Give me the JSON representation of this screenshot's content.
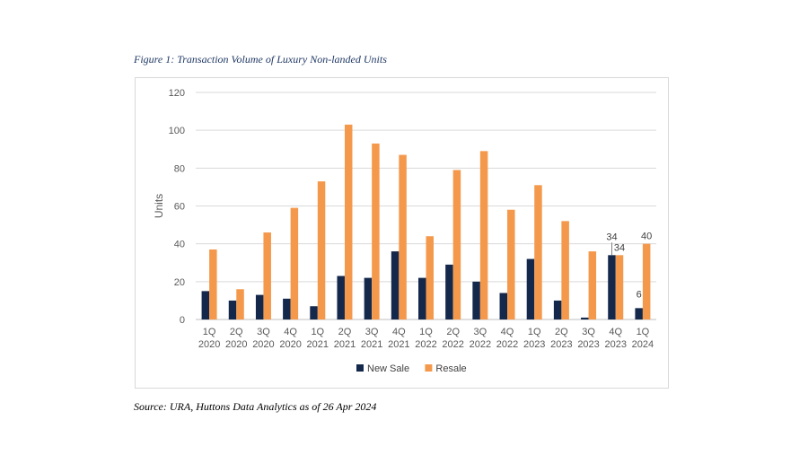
{
  "caption": "Figure 1: Transaction Volume of Luxury Non-landed Units",
  "source": "Source: URA, Huttons Data Analytics as of 26 Apr 2024",
  "chart_data": {
    "type": "bar",
    "title": "Figure 1: Transaction Volume of Luxury Non-landed Units",
    "xlabel": "",
    "ylabel": "Units",
    "ylim": [
      0,
      120
    ],
    "yticks": [
      0,
      20,
      40,
      60,
      80,
      100,
      120
    ],
    "grid": true,
    "legend_position": "bottom",
    "categories": [
      [
        "1Q",
        "2020"
      ],
      [
        "2Q",
        "2020"
      ],
      [
        "3Q",
        "2020"
      ],
      [
        "4Q",
        "2020"
      ],
      [
        "1Q",
        "2021"
      ],
      [
        "2Q",
        "2021"
      ],
      [
        "3Q",
        "2021"
      ],
      [
        "4Q",
        "2021"
      ],
      [
        "1Q",
        "2022"
      ],
      [
        "2Q",
        "2022"
      ],
      [
        "3Q",
        "2022"
      ],
      [
        "4Q",
        "2022"
      ],
      [
        "1Q",
        "2023"
      ],
      [
        "2Q",
        "2023"
      ],
      [
        "3Q",
        "2023"
      ],
      [
        "4Q",
        "2023"
      ],
      [
        "1Q",
        "2024"
      ]
    ],
    "series": [
      {
        "name": "New Sale",
        "color": "#14284b",
        "values": [
          15,
          10,
          13,
          11,
          7,
          23,
          22,
          36,
          22,
          29,
          20,
          14,
          32,
          10,
          1,
          34,
          6
        ]
      },
      {
        "name": "Resale",
        "color": "#f4994c",
        "values": [
          37,
          16,
          46,
          59,
          73,
          103,
          93,
          87,
          44,
          79,
          89,
          58,
          71,
          52,
          36,
          34,
          40
        ]
      }
    ],
    "data_labels": [
      {
        "series": 0,
        "index": 15,
        "text": "34"
      },
      {
        "series": 1,
        "index": 15,
        "text": "34"
      },
      {
        "series": 1,
        "index": 16,
        "text": "40"
      },
      {
        "series": 0,
        "index": 16,
        "text": "6"
      }
    ]
  }
}
